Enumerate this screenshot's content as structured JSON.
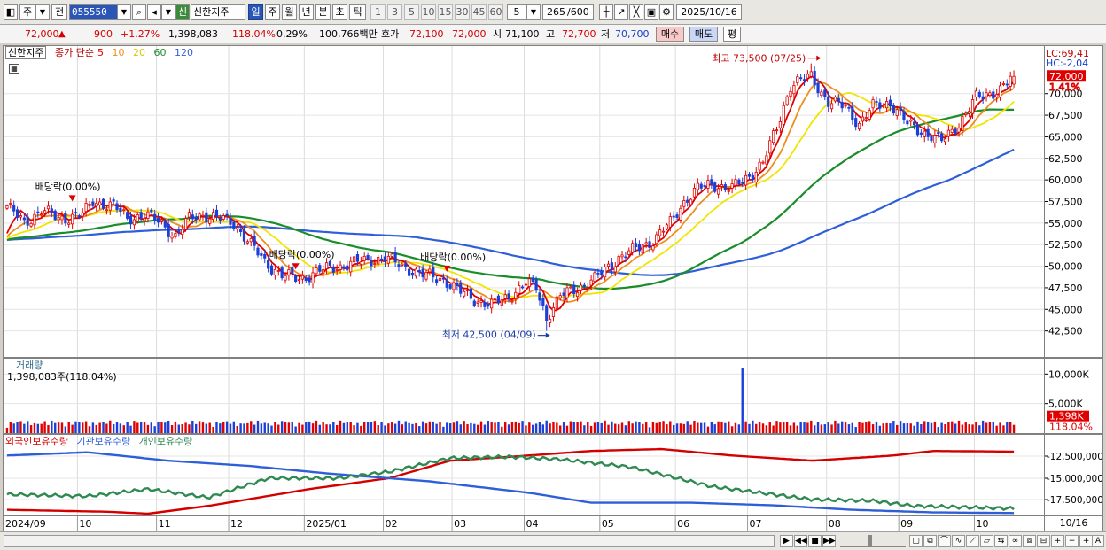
{
  "toolbar": {
    "type1": "주",
    "type2": "전",
    "code": "055550",
    "sin_badge": "신",
    "name": "신한지주",
    "periods": [
      "일",
      "주",
      "월",
      "년",
      "분",
      "초",
      "틱"
    ],
    "active_period": "일",
    "intervals": [
      "1",
      "3",
      "5",
      "10",
      "15",
      "30",
      "45",
      "60"
    ],
    "interval_select": "5",
    "count": "265",
    "count_total": "/600",
    "date": "2025/10/16"
  },
  "infobar": {
    "price": "72,000",
    "up_arrow": "▲",
    "change": "900",
    "change_pct": "+1.27%",
    "volume": "1,398,083",
    "volume_ratio": "118.04%",
    "turnover": "0.29%",
    "amount": "100,766백만",
    "ask_label": "호가",
    "ask": "72,100",
    "bid": "72,000",
    "open_label": "시",
    "open": "71,100",
    "high_label": "고",
    "high": "72,700",
    "low_label": "저",
    "low": "70,700",
    "buy_btn": "매수",
    "sell_btn": "매도",
    "eval_btn": "평"
  },
  "colors": {
    "up": "#e00000",
    "down": "#1c3fd8",
    "ma5": "#e00000",
    "ma10": "#f08c1e",
    "ma20": "#f2e400",
    "ma60": "#1a8c2a",
    "ma120": "#2f5fd8",
    "foreign": "#d40000",
    "inst": "#2f5fd8",
    "indiv": "#2f8a52"
  },
  "price_panel": {
    "legend": {
      "name": "신한지주",
      "series_label": "종가 단순",
      "ma": [
        "5",
        "10",
        "20",
        "60",
        "120"
      ]
    },
    "right": {
      "lc": "LC:69,41",
      "hc": "HC:-2,04",
      "last_tag": "72,000",
      "pct_tag": "1.41%"
    },
    "annotations": {
      "high": "최고 73,500 (07/25)",
      "low": "최저 42,500 (04/09)",
      "div1": "배당락(0.00%)",
      "div2": "배당락(0.00%)",
      "div3": "배당락(0.00%)"
    }
  },
  "volume_panel": {
    "title": "거래량",
    "value": "1,398,083주(118.04%)",
    "last_tag": "1,398K",
    "pct_tag": "118.04%"
  },
  "holding_panel": {
    "labels": [
      "외국인보유수량",
      "기관보유수량",
      "개인보유수량"
    ]
  },
  "xaxis_right": "10/16",
  "chart_data": [
    {
      "type": "candlestick",
      "title": "신한지주",
      "legend": [
        "종가 단순",
        "5",
        "10",
        "20",
        "60",
        "120"
      ],
      "ylim": [
        40000,
        75000
      ],
      "y_ticks": [
        42500,
        45000,
        47500,
        50000,
        52500,
        55000,
        57500,
        60000,
        62500,
        65000,
        67500,
        70000
      ],
      "y_tick_labels": [
        "42,500",
        "45,000",
        "47,500",
        "50,000",
        "52,500",
        "55,000",
        "57,500",
        "60,000",
        "62,500",
        "65,000",
        "67,500",
        "70,000"
      ],
      "x_labels": [
        "2024/09",
        "10",
        "11",
        "12",
        "2025/01",
        "02",
        "03",
        "04",
        "05",
        "06",
        "07",
        "08",
        "09",
        "10"
      ],
      "close_anchors": [
        [
          "2024-09-02",
          57000
        ],
        [
          "2024-09-09",
          55000
        ],
        [
          "2024-09-16",
          56500
        ],
        [
          "2024-09-23",
          55500
        ],
        [
          "2024-10-02",
          56000
        ],
        [
          "2024-10-07",
          57500
        ],
        [
          "2024-10-15",
          57000
        ],
        [
          "2024-10-21",
          55500
        ],
        [
          "2024-10-28",
          56000
        ],
        [
          "2024-11-04",
          55000
        ],
        [
          "2024-11-08",
          53500
        ],
        [
          "2024-11-14",
          55500
        ],
        [
          "2024-11-20",
          56000
        ],
        [
          "2024-11-27",
          55500
        ],
        [
          "2024-12-03",
          55000
        ],
        [
          "2024-12-09",
          53000
        ],
        [
          "2024-12-16",
          50500
        ],
        [
          "2024-12-23",
          49000
        ],
        [
          "2024-12-30",
          48500
        ],
        [
          "2025-01-07",
          49500
        ],
        [
          "2025-01-15",
          50000
        ],
        [
          "2025-01-22",
          50500
        ],
        [
          "2025-02-03",
          51000
        ],
        [
          "2025-02-10",
          50000
        ],
        [
          "2025-02-18",
          49000
        ],
        [
          "2025-02-26",
          48500
        ],
        [
          "2025-03-05",
          47000
        ],
        [
          "2025-03-12",
          46000
        ],
        [
          "2025-03-18",
          45500
        ],
        [
          "2025-03-25",
          46500
        ],
        [
          "2025-04-01",
          48000
        ],
        [
          "2025-04-04",
          47500
        ],
        [
          "2025-04-09",
          44000
        ],
        [
          "2025-04-15",
          46500
        ],
        [
          "2025-04-22",
          47500
        ],
        [
          "2025-04-29",
          48500
        ],
        [
          "2025-05-08",
          51000
        ],
        [
          "2025-05-15",
          52000
        ],
        [
          "2025-05-22",
          53000
        ],
        [
          "2025-05-29",
          55000
        ],
        [
          "2025-06-04",
          57500
        ],
        [
          "2025-06-10",
          59000
        ],
        [
          "2025-06-16",
          59500
        ],
        [
          "2025-06-24",
          59000
        ],
        [
          "2025-07-01",
          60500
        ],
        [
          "2025-07-07",
          62000
        ],
        [
          "2025-07-11",
          66000
        ],
        [
          "2025-07-17",
          71000
        ],
        [
          "2025-07-25",
          72000
        ],
        [
          "2025-08-01",
          69000
        ],
        [
          "2025-08-08",
          68500
        ],
        [
          "2025-08-14",
          66500
        ],
        [
          "2025-08-20",
          68500
        ],
        [
          "2025-08-27",
          69000
        ],
        [
          "2025-09-03",
          66500
        ],
        [
          "2025-09-10",
          65500
        ],
        [
          "2025-09-17",
          64500
        ],
        [
          "2025-09-24",
          66500
        ],
        [
          "2025-10-01",
          69500
        ],
        [
          "2025-10-10",
          70500
        ],
        [
          "2025-10-16",
          72000
        ]
      ],
      "high": {
        "date": "2025-07-25",
        "value": 73500
      },
      "low": {
        "date": "2025-04-09",
        "value": 42500
      },
      "ex_dividend_dates": [
        "2024-09-27",
        "2024-12-27",
        "2025-02-27"
      ],
      "last": {
        "close": 72000,
        "open": 71100,
        "high": 72700,
        "low": 70700
      }
    },
    {
      "type": "bar",
      "title": "거래량",
      "ylim": [
        0,
        12000000
      ],
      "y_ticks": [
        5000000,
        10000000
      ],
      "y_tick_labels": [
        "5,000K",
        "10,000K"
      ],
      "typical_volume": 1300000,
      "spike": {
        "date": "2025-06-27",
        "value": 11000000
      },
      "last": 1398083
    },
    {
      "type": "line",
      "title": "외국인보유수량 / 기관보유수량 / 개인보유수량",
      "y_ticks": [
        -12500000,
        -15000000,
        -17500000
      ],
      "y_tick_labels": [
        "-12,500,000",
        "-15,000,000",
        "-17,500,000"
      ],
      "series": [
        {
          "name": "외국인보유수량",
          "anchors": [
            [
              0.0,
              0.06
            ],
            [
              0.1,
              0.03
            ],
            [
              0.14,
              0.0
            ],
            [
              0.2,
              0.12
            ],
            [
              0.3,
              0.38
            ],
            [
              0.38,
              0.55
            ],
            [
              0.44,
              0.82
            ],
            [
              0.5,
              0.88
            ],
            [
              0.58,
              0.97
            ],
            [
              0.65,
              1.0
            ],
            [
              0.72,
              0.9
            ],
            [
              0.8,
              0.82
            ],
            [
              0.88,
              0.9
            ],
            [
              0.92,
              0.97
            ],
            [
              1.0,
              0.96
            ]
          ]
        },
        {
          "name": "기관보유수량",
          "anchors": [
            [
              0.0,
              0.9
            ],
            [
              0.08,
              0.95
            ],
            [
              0.16,
              0.82
            ],
            [
              0.24,
              0.74
            ],
            [
              0.32,
              0.62
            ],
            [
              0.42,
              0.5
            ],
            [
              0.52,
              0.32
            ],
            [
              0.58,
              0.17
            ],
            [
              0.68,
              0.17
            ],
            [
              0.76,
              0.13
            ],
            [
              0.84,
              0.06
            ],
            [
              0.92,
              0.02
            ],
            [
              1.0,
              0.01
            ]
          ]
        },
        {
          "name": "개인보유수량",
          "anchors": [
            [
              0.0,
              0.3
            ],
            [
              0.08,
              0.27
            ],
            [
              0.14,
              0.38
            ],
            [
              0.2,
              0.25
            ],
            [
              0.26,
              0.55
            ],
            [
              0.33,
              0.55
            ],
            [
              0.38,
              0.65
            ],
            [
              0.44,
              0.86
            ],
            [
              0.5,
              0.88
            ],
            [
              0.55,
              0.84
            ],
            [
              0.62,
              0.72
            ],
            [
              0.7,
              0.42
            ],
            [
              0.8,
              0.22
            ],
            [
              0.86,
              0.2
            ],
            [
              0.9,
              0.12
            ],
            [
              0.95,
              0.1
            ],
            [
              1.0,
              0.08
            ]
          ]
        }
      ]
    }
  ]
}
